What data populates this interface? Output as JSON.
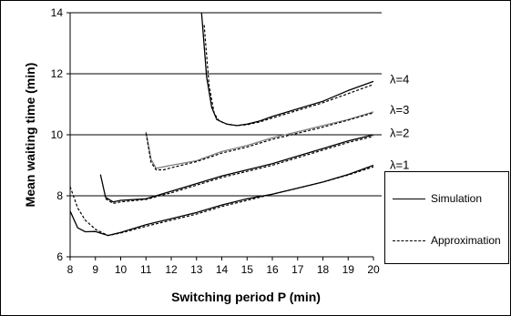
{
  "chart_data": {
    "type": "line",
    "title": "",
    "xlabel": "Switching period P (min)",
    "ylabel": "Mean waiting time (min)",
    "xlim": [
      8,
      20
    ],
    "ylim": [
      6,
      14
    ],
    "x_ticks": [
      "8",
      "9",
      "10",
      "11",
      "12",
      "13",
      "14",
      "15",
      "16",
      "17",
      "18",
      "19",
      "20"
    ],
    "y_ticks": [
      "6",
      "8",
      "10",
      "12",
      "14"
    ],
    "grid": "horizontal",
    "legend_position": "right",
    "legend": [
      {
        "label": "Simulation",
        "style": "solid"
      },
      {
        "label": "Approximation",
        "style": "dashed"
      }
    ],
    "curve_labels": [
      {
        "text": "λ=4",
        "y": 11.8
      },
      {
        "text": "λ=3",
        "y": 10.8
      },
      {
        "text": "λ=2",
        "y": 10.05
      },
      {
        "text": "λ=1",
        "y": 9.0
      }
    ],
    "series": [
      {
        "lambda": "1",
        "method": "simulation",
        "x": [
          8,
          8.3,
          8.6,
          9.0,
          9.5,
          10,
          11,
          12,
          13,
          14,
          15,
          16,
          17,
          18,
          19,
          20
        ],
        "y": [
          7.5,
          6.95,
          6.82,
          6.83,
          6.7,
          6.8,
          7.05,
          7.25,
          7.45,
          7.7,
          7.9,
          8.05,
          8.25,
          8.45,
          8.7,
          9.0
        ]
      },
      {
        "lambda": "1",
        "method": "approximation",
        "x": [
          8,
          8.3,
          8.6,
          9.0,
          9.5,
          10,
          11,
          12,
          13,
          14,
          15,
          16,
          17,
          18,
          19,
          20
        ],
        "y": [
          8.3,
          7.6,
          7.2,
          6.9,
          6.7,
          6.78,
          7.0,
          7.2,
          7.4,
          7.65,
          7.85,
          8.05,
          8.25,
          8.45,
          8.68,
          8.95
        ]
      },
      {
        "lambda": "2",
        "method": "simulation",
        "x": [
          9.2,
          9.4,
          9.7,
          10,
          11,
          12,
          13,
          14,
          15,
          16,
          17,
          18,
          19,
          20
        ],
        "y": [
          8.7,
          7.95,
          7.8,
          7.85,
          7.9,
          8.15,
          8.4,
          8.65,
          8.85,
          9.05,
          9.3,
          9.55,
          9.8,
          10.0
        ]
      },
      {
        "lambda": "2",
        "method": "approximation",
        "x": [
          9.4,
          9.7,
          10,
          11,
          12,
          13,
          14,
          15,
          16,
          17,
          18,
          19,
          20
        ],
        "y": [
          7.9,
          7.75,
          7.8,
          7.88,
          8.1,
          8.35,
          8.6,
          8.8,
          9.0,
          9.25,
          9.5,
          9.75,
          9.95
        ]
      },
      {
        "lambda": "3",
        "method": "simulation",
        "x": [
          11.0,
          11.2,
          11.4,
          11.7,
          12,
          13,
          14,
          15,
          16,
          17,
          18,
          19,
          20
        ],
        "y": [
          10.1,
          9.2,
          8.9,
          8.95,
          9.0,
          9.15,
          9.45,
          9.65,
          9.9,
          10.1,
          10.3,
          10.5,
          10.75
        ]
      },
      {
        "lambda": "3",
        "method": "approximation",
        "x": [
          11.0,
          11.2,
          11.4,
          11.7,
          12,
          13,
          14,
          15,
          16,
          17,
          18,
          19,
          20
        ],
        "y": [
          10.05,
          9.1,
          8.85,
          8.85,
          8.92,
          9.12,
          9.4,
          9.6,
          9.85,
          10.05,
          10.25,
          10.48,
          10.72
        ]
      },
      {
        "lambda": "4",
        "method": "simulation",
        "x": [
          13.2,
          13.4,
          13.6,
          13.8,
          14.2,
          14.6,
          15,
          15.5,
          16,
          17,
          18,
          19,
          20
        ],
        "y": [
          14.0,
          11.9,
          10.9,
          10.5,
          10.35,
          10.3,
          10.35,
          10.45,
          10.6,
          10.85,
          11.1,
          11.45,
          11.75
        ]
      },
      {
        "lambda": "4",
        "method": "approximation",
        "x": [
          13.3,
          13.5,
          13.7,
          13.9,
          14.2,
          14.6,
          15,
          15.5,
          16,
          17,
          18,
          19,
          20
        ],
        "y": [
          13.6,
          11.6,
          10.7,
          10.45,
          10.35,
          10.3,
          10.33,
          10.42,
          10.55,
          10.8,
          11.05,
          11.35,
          11.65
        ]
      }
    ]
  }
}
